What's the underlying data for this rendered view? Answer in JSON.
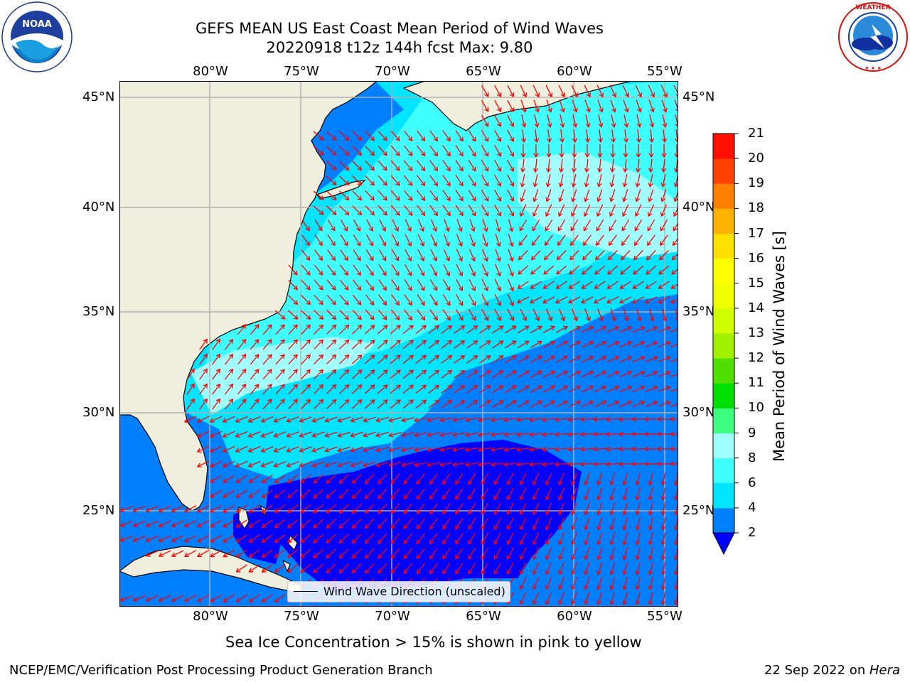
{
  "title": {
    "line1": "GEFS MEAN US East Coast Mean Period of Wind Waves",
    "line2": "20220918 t12z 144h fcst   Max: 9.80"
  },
  "logos": {
    "left": {
      "text": "NOAA",
      "ring_text": "NATIONAL OCEANIC AND ATMOSPHERIC ADMINISTRATION · U.S. DEPARTMENT OF COMMERCE",
      "icon": "noaa-logo-icon"
    },
    "right": {
      "ring_text": "NATIONAL WEATHER SERVICE",
      "icon": "nws-logo-icon"
    }
  },
  "map": {
    "lon_labels": [
      "80°W",
      "75°W",
      "70°W",
      "65°W",
      "60°W",
      "55°W"
    ],
    "lat_labels": [
      "45°N",
      "40°N",
      "35°N",
      "30°N",
      "25°N"
    ],
    "legend": "Wind Wave Direction (unscaled)",
    "colors": {
      "land": "#f0eedc",
      "arrow": "#ff0000",
      "grid": "#b0b0b0"
    }
  },
  "colorbar": {
    "label": "Mean Period of Wind Waves [s]",
    "ticks": [
      "2",
      "4",
      "6",
      "8",
      "9",
      "10",
      "11",
      "12",
      "13",
      "14",
      "15",
      "16",
      "17",
      "18",
      "19",
      "20",
      "21"
    ],
    "colors": [
      "#0080ff",
      "#00e4ff",
      "#40ffff",
      "#a0ffff",
      "#40ff80",
      "#00e000",
      "#50e000",
      "#a0f000",
      "#d0ff00",
      "#f0ff00",
      "#ffff00",
      "#ffe000",
      "#ffb000",
      "#ff8000",
      "#ff4000",
      "#ff1000"
    ],
    "under_color": "#0000ff"
  },
  "note": "Sea Ice Concentration > 15% is shown in pink to yellow",
  "footer": {
    "left": "NCEP/EMC/Verification Post Processing Product Generation Branch",
    "date": "22 Sep 2022 on ",
    "host": "Hera"
  }
}
